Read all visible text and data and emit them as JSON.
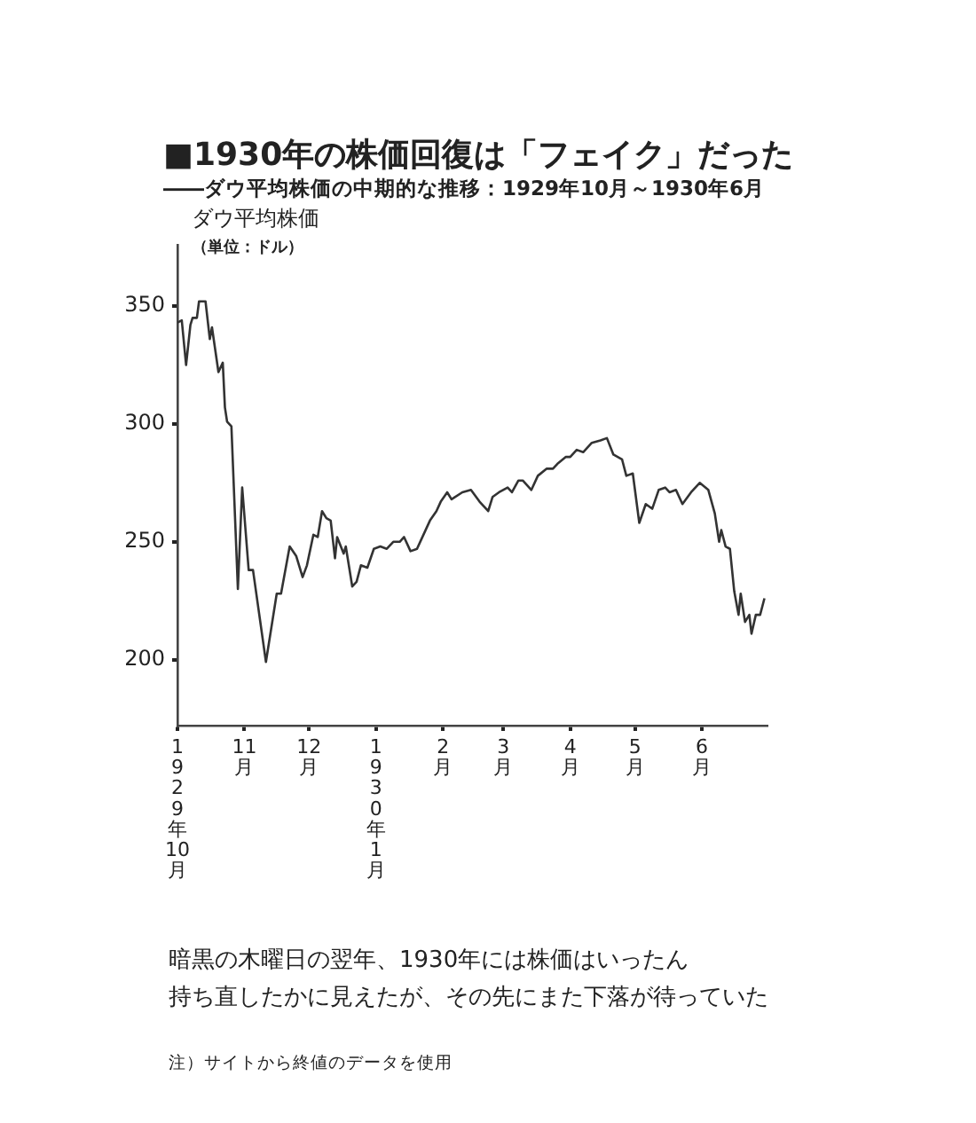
{
  "chart_data": {
    "type": "line",
    "title": "■1930年の株価回復は「フェイク」だった",
    "subtitle": "――ダウ平均株価の中期的な推移：1929年10月～1930年6月",
    "ylabel": "ダウ平均株価（単位：ドル）",
    "annotations": [
      "暗黒の木曜日の翌年、1930年には株価はいったん",
      "持ち直したかに見えたが、その先にまた下落が待っていた",
      "注）サイトから終値のデータを使用"
    ],
    "x": [
      "1929-10-01",
      "1929-10-03",
      "1929-10-05",
      "1929-10-07",
      "1929-10-08",
      "1929-10-10",
      "1929-10-11",
      "1929-10-14",
      "1929-10-16",
      "1929-10-17",
      "1929-10-20",
      "1929-10-22",
      "1929-10-23",
      "1929-10-24",
      "1929-10-26",
      "1929-10-29",
      "1929-10-31",
      "1929-11-03",
      "1929-11-05",
      "1929-11-11",
      "1929-11-16",
      "1929-11-18",
      "1929-11-22",
      "1929-11-25",
      "1929-11-28",
      "1929-11-30",
      "1929-12-03",
      "1929-12-05",
      "1929-12-07",
      "1929-12-09",
      "1929-12-11",
      "1929-12-13",
      "1929-12-14",
      "1929-12-17",
      "1929-12-18",
      "1929-12-21",
      "1929-12-23",
      "1929-12-25",
      "1929-12-28",
      "1929-12-31",
      "1930-01-03",
      "1930-01-06",
      "1930-01-09",
      "1930-01-12",
      "1930-01-14",
      "1930-01-17",
      "1930-01-20",
      "1930-01-22",
      "1930-01-26",
      "1930-01-29",
      "1930-01-31",
      "1930-02-03",
      "1930-02-05",
      "1930-02-10",
      "1930-02-14",
      "1930-02-18",
      "1930-02-22",
      "1930-02-24",
      "1930-02-27",
      "1930-03-03",
      "1930-03-05",
      "1930-03-08",
      "1930-03-10",
      "1930-03-14",
      "1930-03-17",
      "1930-03-21",
      "1930-03-24",
      "1930-03-26",
      "1930-03-30",
      "1930-04-01",
      "1930-04-04",
      "1930-04-07",
      "1930-04-11",
      "1930-04-15",
      "1930-04-18",
      "1930-04-21",
      "1930-04-25",
      "1930-04-27",
      "1930-04-30",
      "1930-05-03",
      "1930-05-06",
      "1930-05-09",
      "1930-05-12",
      "1930-05-15",
      "1930-05-17",
      "1930-05-20",
      "1930-05-23",
      "1930-05-27",
      "1930-05-31",
      "1930-06-04",
      "1930-06-07",
      "1930-06-09",
      "1930-06-10",
      "1930-06-12",
      "1930-06-14",
      "1930-06-16",
      "1930-06-18",
      "1930-06-19",
      "1930-06-21",
      "1930-06-23",
      "1930-06-24",
      "1930-06-26",
      "1930-06-28",
      "1930-06-30"
    ],
    "series": [
      {
        "color": "#333333",
        "values": [
          343,
          344,
          325,
          342,
          345,
          345,
          352,
          352,
          336,
          341,
          322,
          326,
          307,
          301,
          299,
          230,
          273,
          238,
          238,
          199,
          228,
          228,
          248,
          244,
          235,
          240,
          253,
          252,
          263,
          260,
          259,
          243,
          252,
          245,
          248,
          231,
          233,
          240,
          239,
          247,
          248,
          247,
          250,
          250,
          252,
          246,
          247,
          251,
          259,
          263,
          267,
          271,
          268,
          271,
          272,
          267,
          263,
          269,
          271,
          273,
          271,
          276,
          276,
          272,
          278,
          281,
          281,
          283,
          286,
          286,
          289,
          288,
          292,
          293,
          294,
          287,
          285,
          278,
          279,
          258,
          266,
          264,
          272,
          273,
          271,
          272,
          266,
          271,
          275,
          272,
          262,
          250,
          255,
          248,
          247,
          229,
          219,
          228,
          216,
          219,
          211,
          219,
          219,
          226
        ]
      }
    ],
    "xlim": [
      "1929-10",
      "1930-07"
    ],
    "xticks": [
      {
        "value": "1929-10",
        "label": "1929年10月"
      },
      {
        "value": "1929-11",
        "label": "11月"
      },
      {
        "value": "1929-12",
        "label": "12月"
      },
      {
        "value": "1930-01",
        "label": "1930年1月"
      },
      {
        "value": "1930-02",
        "label": "2月"
      },
      {
        "value": "1930-03",
        "label": "3月"
      },
      {
        "value": "1930-04",
        "label": "4月"
      },
      {
        "value": "1930-05",
        "label": "5月"
      },
      {
        "value": "1930-06",
        "label": "6月"
      }
    ],
    "ylim": [
      172,
      376
    ],
    "yticks": [
      200,
      250,
      300,
      350
    ],
    "grid": false,
    "legend": false,
    "marker": "none",
    "line_style": "solid"
  }
}
